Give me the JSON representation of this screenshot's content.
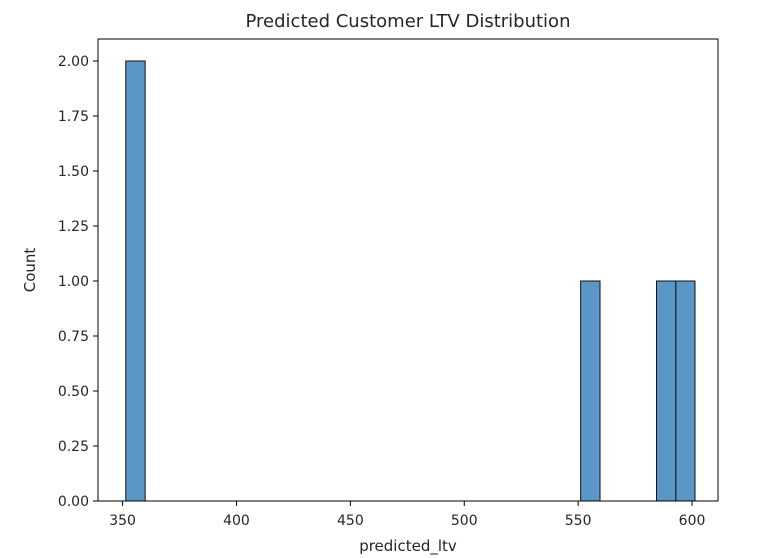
{
  "chart_data": {
    "type": "bar",
    "title": "Predicted Customer LTV Distribution",
    "xlabel": "predicted_ltv",
    "ylabel": "Count",
    "xlim": [
      339.2,
      611.4
    ],
    "ylim": [
      0,
      2.1
    ],
    "xticks": [
      350,
      400,
      450,
      500,
      550,
      600
    ],
    "xtick_labels": [
      "350",
      "400",
      "450",
      "500",
      "550",
      "600"
    ],
    "yticks": [
      0,
      0.25,
      0.5,
      0.75,
      1.0,
      1.25,
      1.5,
      1.75,
      2.0
    ],
    "ytick_labels": [
      "0.00",
      "0.25",
      "0.50",
      "0.75",
      "1.00",
      "1.25",
      "1.50",
      "1.75",
      "2.00"
    ],
    "bins": [
      {
        "x0": 351.4,
        "x1": 359.9,
        "count": 2
      },
      {
        "x0": 551.1,
        "x1": 559.6,
        "count": 1
      },
      {
        "x0": 584.4,
        "x1": 592.9,
        "count": 1
      },
      {
        "x0": 592.9,
        "x1": 601.3,
        "count": 1
      }
    ],
    "bar_color": "#5a96c6",
    "edge_color": "#111111",
    "grid": false,
    "legend": "none"
  }
}
